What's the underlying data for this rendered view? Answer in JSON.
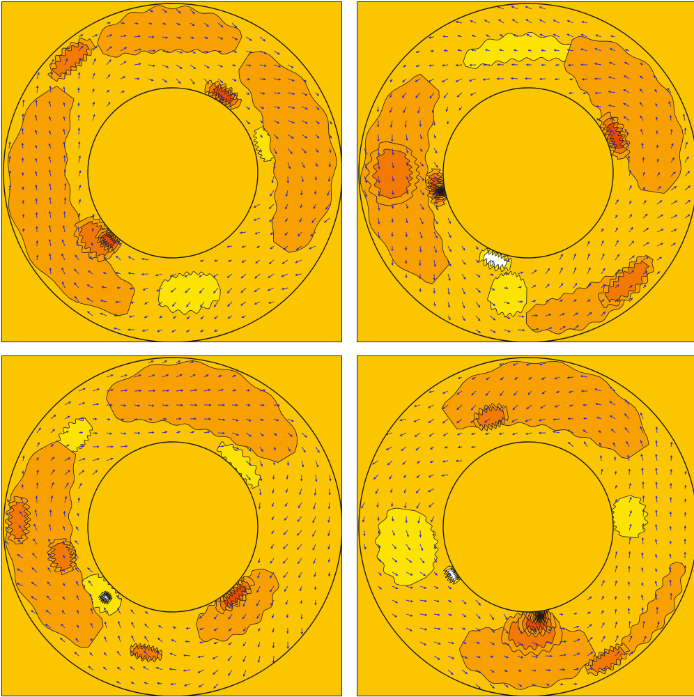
{
  "colors": {
    "background": "#fbc500",
    "level_1": "#fde400",
    "level_2": "#fbc500",
    "level_3": "#f7a000",
    "level_4": "#f27a00",
    "level_5": "#e84800",
    "level_6": "#cc1010",
    "level_low": "#ffffff",
    "contour": "#1a1a1a",
    "arrow": "#2a2ad6"
  },
  "panels": [
    {
      "id": "top-left",
      "features": [
        {
          "level": 3,
          "angle": 3.45,
          "width": 1.9,
          "r0": 0.62,
          "r1": 0.98
        },
        {
          "level": 3,
          "angle": 0.2,
          "width": 1.6,
          "r0": 0.6,
          "r1": 0.96
        },
        {
          "level": 3,
          "angle": 1.6,
          "width": 1.0,
          "r0": 0.72,
          "r1": 0.98
        },
        {
          "level": 4,
          "angle": 3.85,
          "width": 0.45,
          "r0": 0.5,
          "r1": 0.7
        },
        {
          "level": 4,
          "angle": 2.3,
          "width": 0.35,
          "r0": 0.84,
          "r1": 0.97
        },
        {
          "level": 5,
          "angle": 3.95,
          "width": 0.28,
          "r0": 0.5,
          "r1": 0.6
        },
        {
          "level": 5,
          "angle": 1.0,
          "width": 0.42,
          "r0": 0.5,
          "r1": 0.6
        },
        {
          "level": 1,
          "angle": 4.85,
          "width": 0.5,
          "r0": 0.6,
          "r1": 0.83
        },
        {
          "level": 1,
          "angle": 3.0,
          "width": 0.5,
          "r0": 0.7,
          "r1": 0.85
        },
        {
          "level": 1,
          "angle": 0.3,
          "width": 0.35,
          "r0": 0.52,
          "r1": 0.62
        }
      ]
    },
    {
      "id": "top-right",
      "features": [
        {
          "level": 3,
          "angle": 3.2,
          "width": 1.6,
          "r0": 0.6,
          "r1": 0.98
        },
        {
          "level": 3,
          "angle": 0.55,
          "width": 1.4,
          "r0": 0.55,
          "r1": 0.95
        },
        {
          "level": 3,
          "angle": 5.1,
          "width": 0.8,
          "r0": 0.75,
          "r1": 0.97
        },
        {
          "level": 4,
          "angle": 3.15,
          "width": 0.45,
          "r0": 0.65,
          "r1": 0.95
        },
        {
          "level": 4,
          "angle": 5.45,
          "width": 0.45,
          "r0": 0.8,
          "r1": 0.95
        },
        {
          "level": 5,
          "angle": 3.3,
          "width": 0.4,
          "r0": 0.5,
          "r1": 0.6
        },
        {
          "level": 5,
          "angle": 0.4,
          "width": 0.5,
          "r0": 0.5,
          "r1": 0.62
        },
        {
          "level": 6,
          "angle": 3.35,
          "width": 0.18,
          "r0": 0.5,
          "r1": 0.56
        },
        {
          "level": 1,
          "angle": 1.65,
          "width": 0.9,
          "r0": 0.67,
          "r1": 0.82
        },
        {
          "level": 1,
          "angle": 4.55,
          "width": 0.3,
          "r0": 0.6,
          "r1": 0.85
        },
        {
          "level": 0,
          "angle": 4.35,
          "width": 0.35,
          "r0": 0.5,
          "r1": 0.6
        }
      ]
    },
    {
      "id": "bottom-left",
      "features": [
        {
          "level": 3,
          "angle": 3.3,
          "width": 1.6,
          "r0": 0.6,
          "r1": 0.98
        },
        {
          "level": 3,
          "angle": 1.3,
          "width": 1.5,
          "r0": 0.6,
          "r1": 0.98
        },
        {
          "level": 3,
          "angle": 5.4,
          "width": 0.9,
          "r0": 0.5,
          "r1": 0.75
        },
        {
          "level": 4,
          "angle": 3.1,
          "width": 0.3,
          "r0": 0.85,
          "r1": 0.98
        },
        {
          "level": 4,
          "angle": 3.4,
          "width": 0.3,
          "r0": 0.6,
          "r1": 0.75
        },
        {
          "level": 4,
          "angle": 4.5,
          "width": 0.25,
          "r0": 0.72,
          "r1": 0.8
        },
        {
          "level": 5,
          "angle": 5.45,
          "width": 0.5,
          "r0": 0.5,
          "r1": 0.6
        },
        {
          "level": 1,
          "angle": 3.9,
          "width": 0.45,
          "r0": 0.5,
          "r1": 0.66
        },
        {
          "level": 1,
          "angle": 2.4,
          "width": 0.3,
          "r0": 0.72,
          "r1": 0.86
        },
        {
          "level": 1,
          "angle": 0.75,
          "width": 0.6,
          "r0": 0.5,
          "r1": 0.6
        },
        {
          "level": 0,
          "angle": 3.95,
          "width": 0.12,
          "r0": 0.55,
          "r1": 0.6
        }
      ]
    },
    {
      "id": "bottom-right",
      "features": [
        {
          "level": 3,
          "angle": 1.4,
          "width": 1.6,
          "r0": 0.6,
          "r1": 0.98
        },
        {
          "level": 3,
          "angle": 4.7,
          "width": 1.0,
          "r0": 0.6,
          "r1": 0.95
        },
        {
          "level": 3,
          "angle": 5.7,
          "width": 0.7,
          "r0": 0.85,
          "r1": 0.98
        },
        {
          "level": 4,
          "angle": 4.75,
          "width": 0.55,
          "r0": 0.5,
          "r1": 0.75
        },
        {
          "level": 4,
          "angle": 1.9,
          "width": 0.3,
          "r0": 0.62,
          "r1": 0.75
        },
        {
          "level": 4,
          "angle": 5.25,
          "width": 0.3,
          "r0": 0.86,
          "r1": 0.97
        },
        {
          "level": 5,
          "angle": 4.8,
          "width": 0.38,
          "r0": 0.5,
          "r1": 0.64
        },
        {
          "level": 6,
          "angle": 4.85,
          "width": 0.22,
          "r0": 0.5,
          "r1": 0.57
        },
        {
          "level": 1,
          "angle": 3.3,
          "width": 0.6,
          "r0": 0.55,
          "r1": 0.9
        },
        {
          "level": 1,
          "angle": 0.1,
          "width": 0.4,
          "r0": 0.5,
          "r1": 0.7
        },
        {
          "level": 0,
          "angle": 3.7,
          "width": 0.2,
          "r0": 0.5,
          "r1": 0.56
        }
      ]
    }
  ]
}
